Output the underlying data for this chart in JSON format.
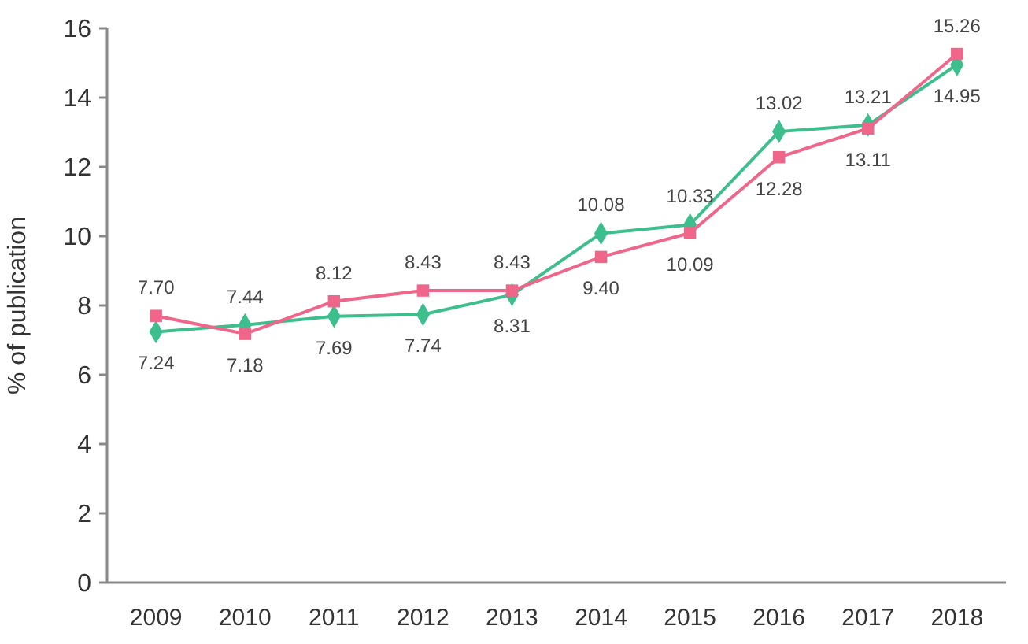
{
  "chart_data": {
    "type": "line",
    "ylabel": "% of publication",
    "categories": [
      "2009",
      "2010",
      "2011",
      "2012",
      "2013",
      "2014",
      "2015",
      "2016",
      "2017",
      "2018"
    ],
    "series": [
      {
        "color": "#3dbf8d",
        "marker": "diamond",
        "values": [
          7.24,
          7.44,
          7.69,
          7.74,
          8.31,
          10.08,
          10.33,
          13.02,
          13.21,
          14.95
        ],
        "value_labels": [
          "7.24",
          "7.44",
          "7.69",
          "7.74",
          "8.31",
          "10.08",
          "10.33",
          "13.02",
          "13.21",
          "14.95"
        ]
      },
      {
        "color": "#f0668a",
        "marker": "square",
        "values": [
          7.7,
          7.18,
          8.12,
          8.43,
          8.43,
          9.4,
          10.09,
          12.28,
          13.11,
          15.26
        ],
        "value_labels": [
          "7.70",
          "7.18",
          "8.12",
          "8.43",
          "8.43",
          "9.40",
          "10.09",
          "12.28",
          "13.11",
          "15.26"
        ]
      }
    ],
    "ylim": [
      0,
      16
    ],
    "yticks": [
      0,
      2,
      4,
      6,
      8,
      10,
      12,
      14,
      16
    ],
    "grid": false
  }
}
